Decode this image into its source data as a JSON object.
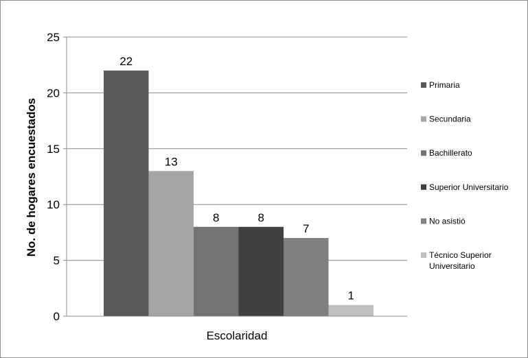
{
  "chart_data": {
    "type": "bar",
    "title": "",
    "xlabel": "Escolaridad",
    "ylabel": "No. de hogares encuestados",
    "ylim": [
      0,
      25
    ],
    "yticks": [
      0,
      5,
      10,
      15,
      20,
      25
    ],
    "grid": true,
    "legend_position": "right",
    "categories": [
      "Escolaridad"
    ],
    "series": [
      {
        "name": "Primaria",
        "values": [
          22
        ],
        "color": "#595959"
      },
      {
        "name": "Secundaria",
        "values": [
          13
        ],
        "color": "#a6a6a6"
      },
      {
        "name": "Bachillerato",
        "values": [
          8
        ],
        "color": "#737373"
      },
      {
        "name": "Superior Universitario",
        "values": [
          8
        ],
        "color": "#404040"
      },
      {
        "name": "No asistió",
        "values": [
          7
        ],
        "color": "#808080"
      },
      {
        "name": "Técnico Superior Universitario",
        "values": [
          1
        ],
        "color": "#bfbfbf"
      }
    ]
  }
}
